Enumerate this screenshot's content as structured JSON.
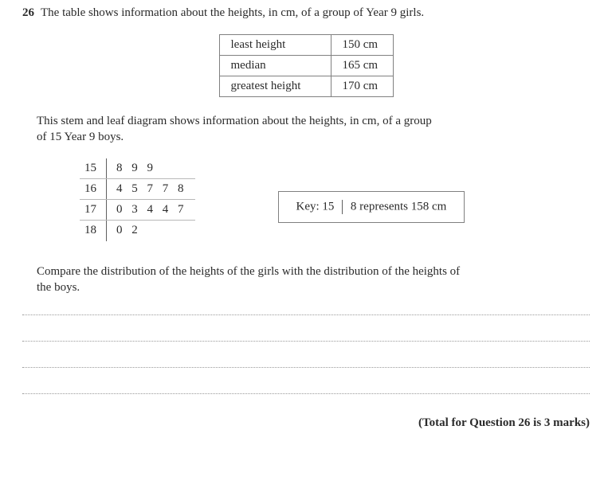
{
  "question": {
    "number": "26",
    "intro": "The table shows information about the heights, in cm, of a group of Year 9 girls."
  },
  "info_table": {
    "rows": [
      {
        "label": "least height",
        "value": "150 cm"
      },
      {
        "label": "median",
        "value": "165 cm"
      },
      {
        "label": "greatest height",
        "value": "170 cm"
      }
    ],
    "border_color": "#808080",
    "text_color": "#2a2a2a",
    "fontsize": 15
  },
  "stemleaf_intro_line1": "This stem and leaf diagram shows information about the heights, in cm, of a group",
  "stemleaf_intro_line2": "of 15 Year 9 boys.",
  "stemleaf": {
    "rows": [
      {
        "stem": "15",
        "leaf": "8 9 9"
      },
      {
        "stem": "16",
        "leaf": "4 5 7 7 8"
      },
      {
        "stem": "17",
        "leaf": "0 3 4 4 7"
      },
      {
        "stem": "18",
        "leaf": "0 2"
      }
    ],
    "stem_border_color": "#606060",
    "row_divider_color": "#b8b8b8",
    "fontsize": 15
  },
  "key": {
    "prefix": "Key: 15",
    "suffix": "8 represents 158 cm",
    "border_color": "#808080"
  },
  "compare_line1": "Compare the distribution of the heights of the girls with the distribution of the heights of",
  "compare_line2": "the boys.",
  "answer_lines": {
    "count": 4,
    "color": "#9a9a9a",
    "spacing_px": 32
  },
  "marks_text": "(Total for Question 26 is 3 marks)",
  "colors": {
    "background": "#ffffff",
    "text": "#2a2a2a"
  }
}
